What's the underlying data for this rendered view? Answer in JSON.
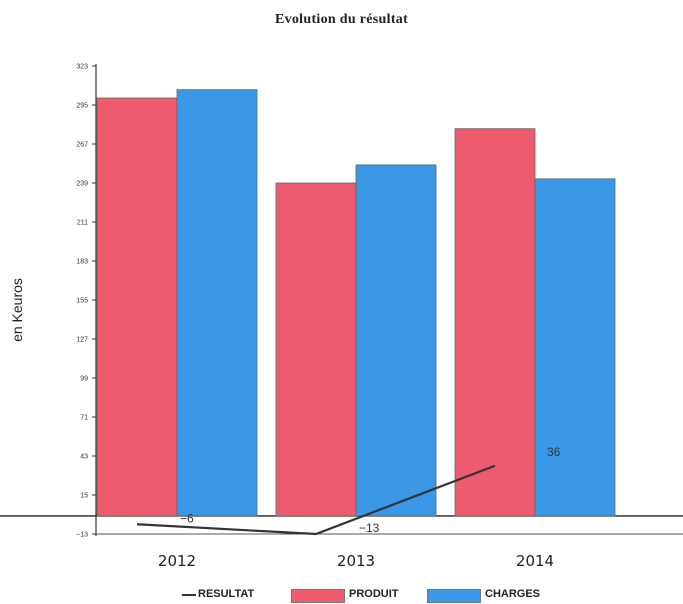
{
  "chart_data": {
    "type": "bar",
    "title": "Evolution du résultat",
    "ylabel": "en Keuros",
    "xlabel": "",
    "categories": [
      "2012",
      "2013",
      "2014"
    ],
    "y_ticks": [
      "−13",
      "15",
      "43",
      "71",
      "99",
      "127",
      "155",
      "183",
      "211",
      "239",
      "267",
      "295",
      "323"
    ],
    "ylim": [
      -13,
      323
    ],
    "grid": false,
    "legend_position": "bottom",
    "series": [
      {
        "name": "PRODUIT",
        "type": "bar",
        "color": "#ee5a6e",
        "values": [
          300,
          239,
          278
        ]
      },
      {
        "name": "CHARGES",
        "type": "bar",
        "color": "#3a98e6",
        "values": [
          306,
          252,
          242
        ]
      },
      {
        "name": "RESULTAT",
        "type": "line",
        "color": "#333333",
        "values": [
          -6,
          -13,
          36
        ],
        "data_labels": [
          "−6",
          "−13",
          "36"
        ]
      }
    ]
  }
}
